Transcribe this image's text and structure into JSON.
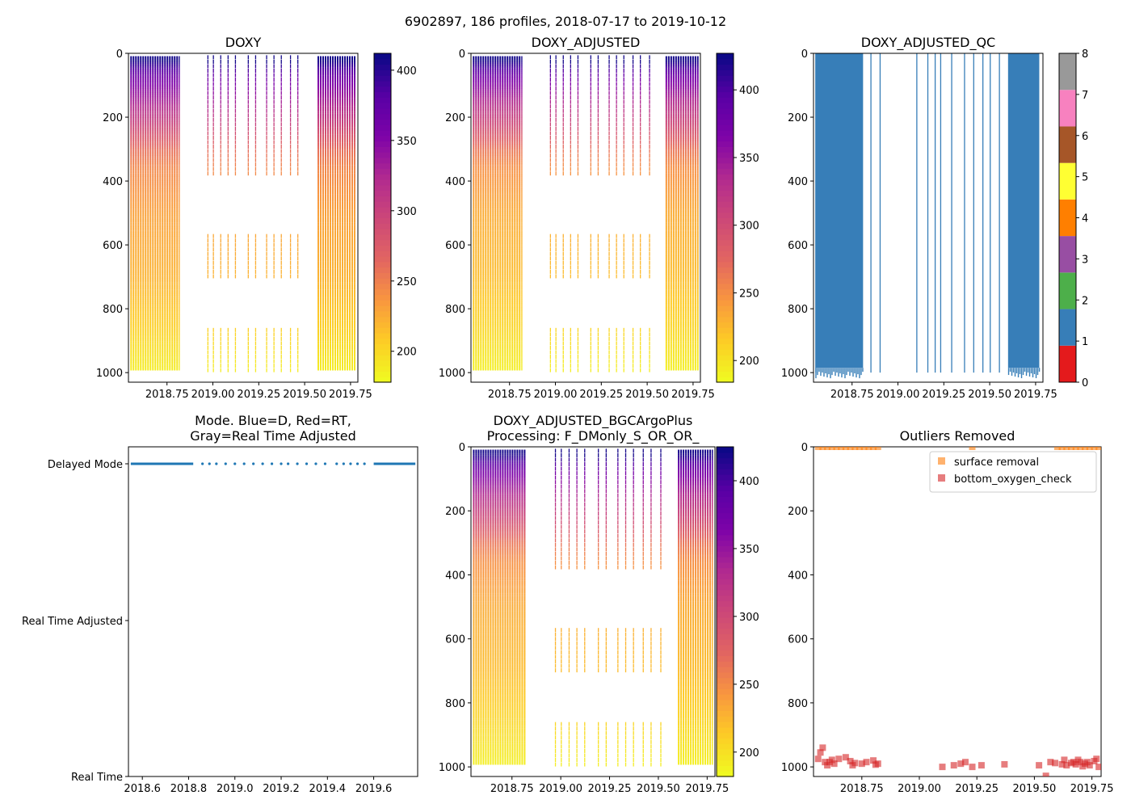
{
  "figure": {
    "suptitle": "6902897, 186 profiles, 2018-07-17 to 2019-10-12"
  },
  "chart_data": [
    {
      "id": "doxy",
      "type": "heatmap",
      "title": "DOXY",
      "x_ticks": [
        "2018.75",
        "2019.00",
        "2019.25",
        "2019.50",
        "2019.75"
      ],
      "x_tick_values": [
        2018.75,
        2019.0,
        2019.25,
        2019.5,
        2019.75
      ],
      "xlim": [
        2018.54,
        2019.79
      ],
      "y_ticks": [
        "0",
        "200",
        "400",
        "600",
        "800",
        "1000"
      ],
      "y_tick_values": [
        0,
        200,
        400,
        600,
        800,
        1000
      ],
      "ylim": [
        1030,
        0
      ],
      "colormap": "plasma_r",
      "colorbar": {
        "ticks": [
          "200",
          "250",
          "300",
          "350",
          "400"
        ],
        "tick_values": [
          200,
          250,
          300,
          350,
          400
        ],
        "range": [
          178,
          412
        ]
      },
      "dense_periods": [
        [
          2018.55,
          2018.82
        ],
        [
          2019.57,
          2019.78
        ]
      ],
      "sparse_profiles": [
        2018.97,
        2019.0,
        2019.04,
        2019.08,
        2019.12,
        2019.19,
        2019.23,
        2019.29,
        2019.33,
        2019.37,
        2019.42,
        2019.46
      ],
      "profile_depth": [
        0,
        990
      ],
      "oxygen_by_depth": [
        [
          20,
          410
        ],
        [
          80,
          360
        ],
        [
          150,
          330
        ],
        [
          220,
          300
        ],
        [
          300,
          260
        ],
        [
          360,
          245
        ],
        [
          500,
          230
        ],
        [
          700,
          220
        ],
        [
          850,
          205
        ],
        [
          1000,
          185
        ]
      ]
    },
    {
      "id": "doxy_adjusted",
      "type": "heatmap",
      "title": "DOXY_ADJUSTED",
      "x_ticks": [
        "2018.75",
        "2019.00",
        "2019.25",
        "2019.50",
        "2019.75"
      ],
      "x_tick_values": [
        2018.75,
        2019.0,
        2019.25,
        2019.5,
        2019.75
      ],
      "xlim": [
        2018.54,
        2019.79
      ],
      "y_ticks": [
        "0",
        "200",
        "400",
        "600",
        "800",
        "1000"
      ],
      "y_tick_values": [
        0,
        200,
        400,
        600,
        800,
        1000
      ],
      "ylim": [
        1030,
        0
      ],
      "colormap": "plasma_r",
      "colorbar": {
        "ticks": [
          "200",
          "250",
          "300",
          "350",
          "400"
        ],
        "tick_values": [
          200,
          250,
          300,
          350,
          400
        ],
        "range": [
          184,
          427
        ]
      },
      "dense_periods": [
        [
          2018.55,
          2018.82
        ],
        [
          2019.6,
          2019.78
        ]
      ],
      "sparse_profiles": [
        2018.97,
        2019.0,
        2019.04,
        2019.08,
        2019.12,
        2019.19,
        2019.23,
        2019.29,
        2019.33,
        2019.37,
        2019.42,
        2019.46,
        2019.51
      ],
      "profile_depth": [
        0,
        990
      ],
      "oxygen_by_depth": [
        [
          20,
          425
        ],
        [
          80,
          370
        ],
        [
          150,
          335
        ],
        [
          220,
          305
        ],
        [
          300,
          265
        ],
        [
          360,
          248
        ],
        [
          500,
          232
        ],
        [
          700,
          222
        ],
        [
          850,
          208
        ],
        [
          1000,
          190
        ]
      ]
    },
    {
      "id": "doxy_adjusted_qc",
      "type": "heatmap",
      "title": "DOXY_ADJUSTED_QC",
      "x_ticks": [
        "2018.75",
        "2019.00",
        "2019.25",
        "2019.50",
        "2019.75"
      ],
      "x_tick_values": [
        2018.75,
        2019.0,
        2019.25,
        2019.5,
        2019.75
      ],
      "xlim": [
        2018.54,
        2019.79
      ],
      "y_ticks": [
        "0",
        "200",
        "400",
        "600",
        "800",
        "1000"
      ],
      "y_tick_values": [
        0,
        200,
        400,
        600,
        800,
        1000
      ],
      "ylim": [
        1030,
        0
      ],
      "flag_value": 1,
      "dense_periods": [
        [
          2018.55,
          2018.81
        ],
        [
          2019.6,
          2019.77
        ]
      ],
      "sparse_profiles": [
        2018.55,
        2018.85,
        2018.9,
        2019.1,
        2019.16,
        2019.2,
        2019.23,
        2019.29,
        2019.36,
        2019.41,
        2019.46,
        2019.5,
        2019.55
      ],
      "colorbar": {
        "ticks": [
          "0",
          "1",
          "2",
          "3",
          "4",
          "5",
          "6",
          "7",
          "8"
        ],
        "tick_values": [
          0,
          1,
          2,
          3,
          4,
          5,
          6,
          7,
          8
        ],
        "colors": [
          "#e41a1c",
          "#377eb8",
          "#4daf4a",
          "#984ea3",
          "#ff7f00",
          "#ffff33",
          "#a65628",
          "#f781bf",
          "#999999"
        ]
      }
    },
    {
      "id": "mode",
      "type": "scatter",
      "title_lines": [
        "Mode. Blue=D, Red=RT,",
        "Gray=Real Time Adjusted"
      ],
      "x_ticks": [
        "2018.6",
        "2018.8",
        "2019.0",
        "2019.2",
        "2019.4",
        "2019.6"
      ],
      "x_tick_values": [
        2018.6,
        2018.8,
        2019.0,
        2019.2,
        2019.4,
        2019.6
      ],
      "xlim": [
        2018.54,
        2019.79
      ],
      "y_categories": [
        "Delayed Mode",
        "Real Time Adjusted",
        "Real Time"
      ],
      "mode_color": "#1f77b4",
      "delayed_continuous": [
        [
          2018.55,
          2018.82
        ],
        [
          2019.6,
          2019.78
        ]
      ],
      "delayed_points": [
        2018.86,
        2018.89,
        2018.92,
        2018.96,
        2019.0,
        2019.04,
        2019.08,
        2019.12,
        2019.16,
        2019.2,
        2019.23,
        2019.27,
        2019.31,
        2019.35,
        2019.39,
        2019.44,
        2019.47,
        2019.5,
        2019.53,
        2019.56
      ]
    },
    {
      "id": "doxy_bgcargoplus",
      "type": "heatmap",
      "title_lines": [
        "DOXY_ADJUSTED_BGCArgoPlus",
        "Processing: F_DMonly_S_OR_OR_"
      ],
      "x_ticks": [
        "2018.75",
        "2019.00",
        "2019.25",
        "2019.50",
        "2019.75"
      ],
      "x_tick_values": [
        2018.75,
        2019.0,
        2019.25,
        2019.5,
        2019.75
      ],
      "xlim": [
        2018.54,
        2019.79
      ],
      "y_ticks": [
        "0",
        "200",
        "400",
        "600",
        "800",
        "1000"
      ],
      "y_tick_values": [
        0,
        200,
        400,
        600,
        800,
        1000
      ],
      "ylim": [
        1030,
        0
      ],
      "colormap": "plasma_r",
      "colorbar": {
        "ticks": [
          "200",
          "250",
          "300",
          "350",
          "400"
        ],
        "tick_values": [
          200,
          250,
          300,
          350,
          400
        ],
        "range": [
          182,
          425
        ]
      },
      "dense_periods": [
        [
          2018.55,
          2018.82
        ],
        [
          2019.6,
          2019.78
        ]
      ],
      "sparse_profiles": [
        2018.97,
        2019.0,
        2019.04,
        2019.08,
        2019.12,
        2019.19,
        2019.23,
        2019.29,
        2019.33,
        2019.37,
        2019.42,
        2019.46,
        2019.51
      ],
      "profile_depth": [
        0,
        990
      ],
      "oxygen_by_depth": [
        [
          20,
          422
        ],
        [
          80,
          368
        ],
        [
          150,
          333
        ],
        [
          220,
          303
        ],
        [
          300,
          263
        ],
        [
          360,
          246
        ],
        [
          500,
          230
        ],
        [
          700,
          220
        ],
        [
          850,
          206
        ],
        [
          1000,
          188
        ]
      ]
    },
    {
      "id": "outliers",
      "type": "scatter",
      "title": "Outliers Removed",
      "x_ticks": [
        "2018.75",
        "2019.00",
        "2019.25",
        "2019.50",
        "2019.75"
      ],
      "x_tick_values": [
        2018.75,
        2019.0,
        2019.25,
        2019.5,
        2019.75
      ],
      "xlim": [
        2018.54,
        2019.79
      ],
      "y_ticks": [
        "0",
        "200",
        "400",
        "600",
        "800",
        "1000"
      ],
      "y_tick_values": [
        0,
        200,
        400,
        600,
        800,
        1000
      ],
      "ylim": [
        1030,
        0
      ],
      "legend": [
        "surface removal",
        "bottom_oxygen_check"
      ],
      "series": [
        {
          "name": "surface removal",
          "color": "#ff7f0e",
          "points": [
            [
              2018.56,
              0
            ],
            [
              2018.58,
              0
            ],
            [
              2018.6,
              0
            ],
            [
              2018.62,
              0
            ],
            [
              2018.64,
              0
            ],
            [
              2018.66,
              0
            ],
            [
              2018.68,
              0
            ],
            [
              2018.7,
              0
            ],
            [
              2018.72,
              0
            ],
            [
              2018.74,
              0
            ],
            [
              2018.76,
              0
            ],
            [
              2018.78,
              0
            ],
            [
              2018.8,
              0
            ],
            [
              2018.82,
              0
            ],
            [
              2019.23,
              0
            ],
            [
              2019.6,
              0
            ],
            [
              2019.62,
              0
            ],
            [
              2019.64,
              0
            ],
            [
              2019.66,
              0
            ],
            [
              2019.68,
              0
            ],
            [
              2019.7,
              0
            ],
            [
              2019.72,
              0
            ],
            [
              2019.74,
              0
            ],
            [
              2019.76,
              0
            ],
            [
              2019.78,
              0
            ]
          ]
        },
        {
          "name": "bottom_oxygen_check",
          "color": "#d62728",
          "points": [
            [
              2018.56,
              975
            ],
            [
              2018.57,
              955
            ],
            [
              2018.58,
              940
            ],
            [
              2018.59,
              985
            ],
            [
              2018.6,
              995
            ],
            [
              2018.61,
              985
            ],
            [
              2018.62,
              978
            ],
            [
              2018.63,
              990
            ],
            [
              2018.65,
              975
            ],
            [
              2018.68,
              970
            ],
            [
              2018.7,
              982
            ],
            [
              2018.71,
              995
            ],
            [
              2018.72,
              988
            ],
            [
              2018.75,
              990
            ],
            [
              2018.77,
              985
            ],
            [
              2018.8,
              980
            ],
            [
              2018.81,
              993
            ],
            [
              2018.82,
              990
            ],
            [
              2019.1,
              1000
            ],
            [
              2019.15,
              995
            ],
            [
              2019.18,
              990
            ],
            [
              2019.2,
              985
            ],
            [
              2019.23,
              1000
            ],
            [
              2019.27,
              995
            ],
            [
              2019.37,
              992
            ],
            [
              2019.52,
              995
            ],
            [
              2019.55,
              1028
            ],
            [
              2019.57,
              985
            ],
            [
              2019.59,
              988
            ],
            [
              2019.62,
              992
            ],
            [
              2019.63,
              978
            ],
            [
              2019.64,
              995
            ],
            [
              2019.66,
              988
            ],
            [
              2019.67,
              985
            ],
            [
              2019.68,
              992
            ],
            [
              2019.69,
              978
            ],
            [
              2019.7,
              985
            ],
            [
              2019.71,
              998
            ],
            [
              2019.72,
              990
            ],
            [
              2019.73,
              985
            ],
            [
              2019.74,
              995
            ],
            [
              2019.76,
              982
            ],
            [
              2019.77,
              975
            ],
            [
              2019.78,
              1000
            ]
          ]
        }
      ]
    }
  ]
}
